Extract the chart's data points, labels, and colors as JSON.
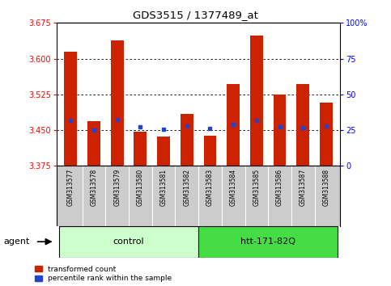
{
  "title": "GDS3515 / 1377489_at",
  "samples": [
    "GSM313577",
    "GSM313578",
    "GSM313579",
    "GSM313580",
    "GSM313581",
    "GSM313582",
    "GSM313583",
    "GSM313584",
    "GSM313585",
    "GSM313586",
    "GSM313587",
    "GSM313588"
  ],
  "bar_values": [
    3.615,
    3.468,
    3.638,
    3.447,
    3.437,
    3.484,
    3.438,
    3.547,
    3.648,
    3.525,
    3.547,
    3.508
  ],
  "percentile_values": [
    3.47,
    3.45,
    3.472,
    3.457,
    3.451,
    3.458,
    3.454,
    3.462,
    3.47,
    3.457,
    3.456,
    3.458
  ],
  "ylim_left": [
    3.375,
    3.675
  ],
  "ylim_right": [
    0,
    100
  ],
  "yticks_left": [
    3.375,
    3.45,
    3.525,
    3.6,
    3.675
  ],
  "yticks_right": [
    0,
    25,
    50,
    75,
    100
  ],
  "bar_color": "#cc2200",
  "blue_color": "#2244cc",
  "bg_plot": "#ffffff",
  "bg_samples": "#cccccc",
  "bg_control": "#ccffcc",
  "bg_htt": "#44dd44",
  "control_label": "control",
  "htt_label": "htt-171-82Q",
  "agent_label": "agent",
  "legend_red": "transformed count",
  "legend_blue": "percentile rank within the sample",
  "control_indices": [
    0,
    1,
    2,
    3,
    4,
    5
  ],
  "htt_indices": [
    6,
    7,
    8,
    9,
    10,
    11
  ],
  "bar_bottom": 3.375
}
